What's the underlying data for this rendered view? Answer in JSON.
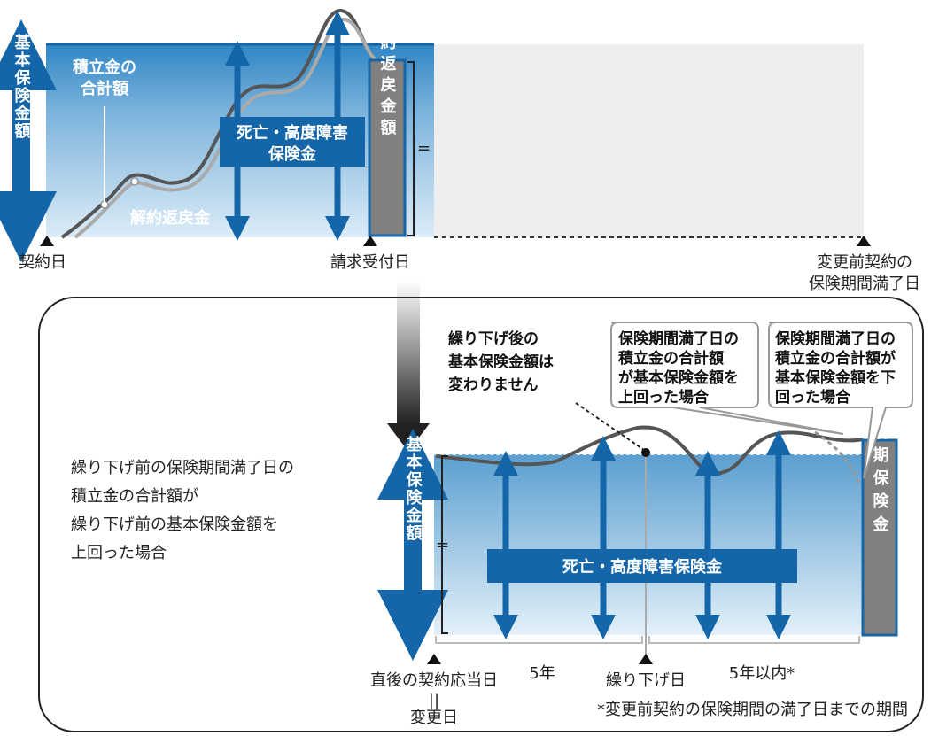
{
  "colors": {
    "blue_dark": "#1466a8",
    "blue_light": "#d6e9f6",
    "gray_bar": "#7f7f7f",
    "gray_area": "#eeeeee",
    "curve": "#555555"
  },
  "top": {
    "vertical_label": "基本保険金額",
    "accumulated_label_1": "積立金の",
    "accumulated_label_2": "合計額",
    "surrender_label": "解約返戻金",
    "death_label_1": "死亡・高度障害",
    "death_label_2": "保険金",
    "surrender_bar_label": "解約返戻金額",
    "equals": "=",
    "contract_date": "契約日",
    "request_date": "請求受付日",
    "maturity_1": "変更前契約の",
    "maturity_2": "保険期間満了日"
  },
  "bottom": {
    "condition_lines": [
      "繰り下げ前の保険期間満了日の",
      "積立金の合計額が",
      "繰り下げ前の基本保険金額を",
      "上回った場合"
    ],
    "note_lines": [
      "繰り下げ後の",
      "基本保険金額は",
      "変わりません"
    ],
    "callout_above_lines": [
      "保険期間満了日の",
      "積立金の合計額",
      "が基本保険金額を",
      "上回った場合"
    ],
    "callout_below_lines": [
      "保険期間満了日の",
      "積立金の合計額が",
      "基本保険金額を下",
      "回った場合"
    ],
    "vertical_label": "基本保険金額",
    "equals": "=",
    "death_label": "死亡・高度障害保険金",
    "maturity_bar_label": "満期保険金",
    "date_after": "直後の契約応当日",
    "eq_vertical": "||",
    "change_date": "変更日",
    "five_years": "5年",
    "deferral_date": "繰り下げ日",
    "within_five": "5年以内*",
    "footnote": "*変更前契約の保険期間の満了日までの期間"
  }
}
